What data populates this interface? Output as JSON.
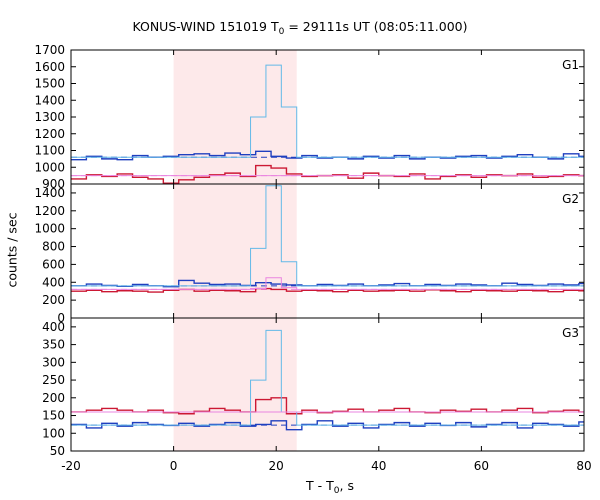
{
  "chart_data": {
    "type": "line",
    "title": {
      "prefix": "KONUS-WIND 151019 T",
      "sub": "0",
      "suffix": " = 29111s UT (08:05:11.000)"
    },
    "xlabel": {
      "prefix": "T - T",
      "sub": "0",
      "suffix": ", s"
    },
    "ylabel": "counts / sec",
    "xlim": [
      -20,
      80
    ],
    "x_ticks": [
      -20,
      0,
      20,
      40,
      60,
      80
    ],
    "highlight_interval": [
      0,
      24
    ],
    "grid": false,
    "colors": {
      "highlight": "#fde9ea",
      "blue": "#1f3fbf",
      "red": "#cc1833",
      "cyan": "#63b9e8",
      "pink": "#e985e0"
    },
    "panels": [
      {
        "label": "G1",
        "ylim": [
          900,
          1700
        ],
        "y_ticks": [
          900,
          1000,
          1100,
          1200,
          1300,
          1400,
          1500,
          1600,
          1700
        ],
        "baselines": {
          "blue": 1060,
          "pink": 950
        },
        "series": [
          {
            "color": "blue",
            "x": [
              -20,
              -17,
              -14,
              -11,
              -8,
              -5,
              -2,
              1,
              4,
              7,
              10,
              13,
              16,
              19,
              22,
              25,
              28,
              31,
              34,
              37,
              40,
              43,
              46,
              49,
              52,
              55,
              58,
              61,
              64,
              67,
              70,
              73,
              76,
              79,
              80
            ],
            "values": [
              1045,
              1065,
              1050,
              1045,
              1070,
              1060,
              1065,
              1075,
              1080,
              1070,
              1085,
              1075,
              1095,
              1065,
              1055,
              1070,
              1055,
              1060,
              1050,
              1065,
              1055,
              1070,
              1050,
              1060,
              1055,
              1065,
              1070,
              1055,
              1065,
              1075,
              1060,
              1050,
              1080,
              1065,
              1065
            ]
          },
          {
            "color": "red",
            "x": [
              -20,
              -17,
              -14,
              -11,
              -8,
              -5,
              -2,
              1,
              4,
              7,
              10,
              13,
              16,
              19,
              22,
              25,
              28,
              31,
              34,
              37,
              40,
              43,
              46,
              49,
              52,
              55,
              58,
              61,
              64,
              67,
              70,
              73,
              76,
              79,
              80
            ],
            "values": [
              930,
              955,
              945,
              960,
              940,
              930,
              905,
              925,
              940,
              955,
              965,
              945,
              1010,
              995,
              960,
              945,
              950,
              955,
              935,
              965,
              950,
              945,
              960,
              930,
              945,
              955,
              940,
              955,
              950,
              960,
              940,
              945,
              955,
              950,
              950
            ]
          },
          {
            "color": "cyan",
            "x": [
              -20,
              15,
              18,
              21,
              24,
              80
            ],
            "values": [
              1060,
              1300,
              1610,
              1360,
              1060,
              1060
            ]
          },
          {
            "color": "pink",
            "x": [
              -20,
              80
            ],
            "values": [
              950,
              950
            ]
          }
        ]
      },
      {
        "label": "G2",
        "ylim": [
          0,
          1500
        ],
        "y_ticks": [
          0,
          200,
          400,
          600,
          800,
          1000,
          1200,
          1400
        ],
        "baselines": {
          "blue": 360,
          "pink": 320
        },
        "series": [
          {
            "color": "blue",
            "x": [
              -20,
              -17,
              -14,
              -11,
              -8,
              -5,
              -2,
              1,
              4,
              7,
              10,
              13,
              16,
              19,
              22,
              25,
              28,
              31,
              34,
              37,
              40,
              43,
              46,
              49,
              52,
              55,
              58,
              61,
              64,
              67,
              70,
              73,
              76,
              79,
              80
            ],
            "values": [
              360,
              380,
              365,
              355,
              375,
              360,
              350,
              420,
              390,
              375,
              380,
              365,
              395,
              380,
              370,
              360,
              375,
              365,
              380,
              360,
              370,
              385,
              360,
              375,
              365,
              380,
              370,
              360,
              390,
              375,
              365,
              380,
              370,
              385,
              385
            ]
          },
          {
            "color": "red",
            "x": [
              -20,
              -17,
              -14,
              -11,
              -8,
              -5,
              -2,
              1,
              4,
              7,
              10,
              13,
              16,
              19,
              22,
              25,
              28,
              31,
              34,
              37,
              40,
              43,
              46,
              49,
              52,
              55,
              58,
              61,
              64,
              67,
              70,
              73,
              76,
              79,
              80
            ],
            "values": [
              300,
              310,
              295,
              305,
              300,
              290,
              310,
              320,
              300,
              310,
              305,
              295,
              330,
              320,
              300,
              310,
              305,
              295,
              310,
              300,
              305,
              310,
              300,
              315,
              305,
              295,
              310,
              305,
              300,
              310,
              305,
              295,
              310,
              305,
              305
            ]
          },
          {
            "color": "cyan",
            "x": [
              -20,
              15,
              18,
              21,
              24,
              80
            ],
            "values": [
              360,
              780,
              1480,
              630,
              360,
              360
            ]
          },
          {
            "color": "pink",
            "x": [
              -20,
              15,
              18,
              21,
              24,
              80
            ],
            "values": [
              320,
              330,
              450,
              340,
              320,
              320
            ]
          }
        ]
      },
      {
        "label": "G3",
        "ylim": [
          50,
          425
        ],
        "y_ticks": [
          50,
          100,
          150,
          200,
          250,
          300,
          350,
          400
        ],
        "baselines": {
          "blue": 123,
          "pink": 160
        },
        "series": [
          {
            "color": "blue",
            "x": [
              -20,
              -17,
              -14,
              -11,
              -8,
              -5,
              -2,
              1,
              4,
              7,
              10,
              13,
              16,
              19,
              22,
              25,
              28,
              31,
              34,
              37,
              40,
              43,
              46,
              49,
              52,
              55,
              58,
              61,
              64,
              67,
              70,
              73,
              76,
              79,
              80
            ],
            "values": [
              125,
              115,
              128,
              120,
              130,
              125,
              122,
              128,
              120,
              125,
              130,
              120,
              125,
              135,
              110,
              125,
              135,
              120,
              128,
              115,
              125,
              130,
              120,
              128,
              122,
              130,
              118,
              125,
              130,
              115,
              128,
              125,
              120,
              132,
              132
            ]
          },
          {
            "color": "red",
            "x": [
              -20,
              -17,
              -14,
              -11,
              -8,
              -5,
              -2,
              1,
              4,
              7,
              10,
              13,
              16,
              19,
              22,
              25,
              28,
              31,
              34,
              37,
              40,
              43,
              46,
              49,
              52,
              55,
              58,
              61,
              64,
              67,
              70,
              73,
              76,
              79,
              80
            ],
            "values": [
              160,
              165,
              170,
              165,
              160,
              165,
              158,
              155,
              162,
              170,
              165,
              160,
              195,
              200,
              155,
              165,
              158,
              162,
              168,
              160,
              165,
              170,
              160,
              158,
              165,
              162,
              168,
              160,
              165,
              170,
              158,
              162,
              165,
              160,
              160
            ]
          },
          {
            "color": "cyan",
            "x": [
              -20,
              15,
              18,
              21,
              24,
              80
            ],
            "values": [
              123,
              250,
              390,
              160,
              123,
              123
            ]
          },
          {
            "color": "pink",
            "x": [
              -20,
              80
            ],
            "values": [
              160,
              160
            ]
          }
        ]
      }
    ]
  }
}
